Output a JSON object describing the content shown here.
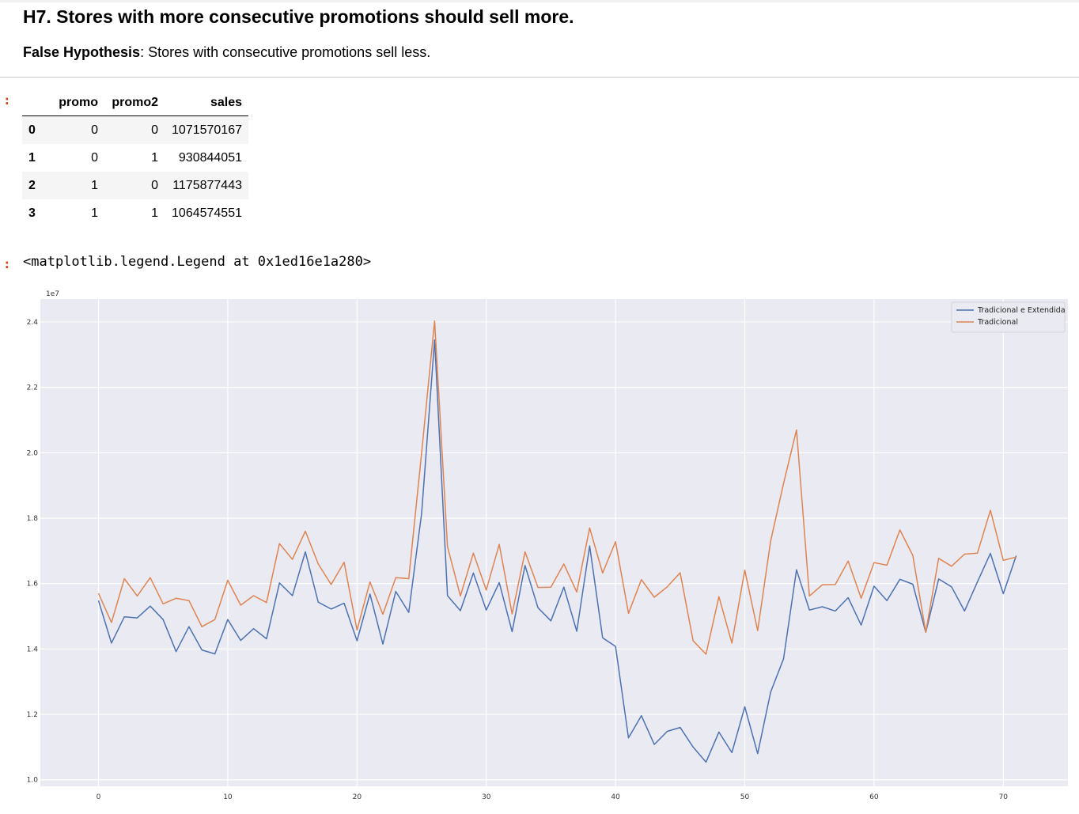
{
  "header": {
    "title": "H7. Stores with more consecutive promotions should sell more.",
    "hypothesis_label": "False Hypothesis",
    "hypothesis_text": ": Stores with consecutive promotions sell less."
  },
  "cells": {
    "prompt_symbol": ":",
    "output_text": "<matplotlib.legend.Legend at 0x1ed16e1a280>"
  },
  "table": {
    "columns": [
      "promo",
      "promo2",
      "sales"
    ],
    "rows": [
      {
        "index": "0",
        "promo": "0",
        "promo2": "0",
        "sales": "1071570167"
      },
      {
        "index": "1",
        "promo": "0",
        "promo2": "1",
        "sales": "930844051"
      },
      {
        "index": "2",
        "promo": "1",
        "promo2": "0",
        "sales": "1175877443"
      },
      {
        "index": "3",
        "promo": "1",
        "promo2": "1",
        "sales": "1064574551"
      }
    ]
  },
  "chart_data": {
    "type": "line",
    "title": "",
    "xlabel": "",
    "ylabel": "",
    "y_offset_label": "1e7",
    "xlim": [
      -4.5,
      75
    ],
    "ylim": [
      0.98,
      2.47
    ],
    "xticks": [
      0,
      10,
      20,
      30,
      40,
      50,
      60,
      70
    ],
    "yticks": [
      1.0,
      1.2,
      1.4,
      1.6,
      1.8,
      2.0,
      2.2,
      2.4
    ],
    "ytick_labels": [
      "1.0",
      "1.2",
      "1.4",
      "1.6",
      "1.8",
      "2.0",
      "2.2",
      "2.4"
    ],
    "grid": true,
    "legend_position": "top-right",
    "background": "#eaeaf2",
    "series": [
      {
        "name": "Tradicional e Extendida",
        "color": "#4c72b0",
        "values": [
          1.548,
          1.418,
          1.498,
          1.495,
          1.531,
          1.49,
          1.392,
          1.468,
          1.397,
          1.385,
          1.49,
          1.426,
          1.462,
          1.431,
          1.602,
          1.563,
          1.697,
          1.543,
          1.522,
          1.54,
          1.425,
          1.568,
          1.415,
          1.576,
          1.512,
          1.815,
          2.345,
          1.563,
          1.517,
          1.632,
          1.519,
          1.603,
          1.453,
          1.655,
          1.526,
          1.486,
          1.589,
          1.454,
          1.715,
          1.434,
          1.408,
          1.128,
          1.196,
          1.108,
          1.148,
          1.16,
          1.1,
          1.054,
          1.146,
          1.083,
          1.223,
          1.08,
          1.268,
          1.37,
          1.642,
          1.519,
          1.529,
          1.516,
          1.557,
          1.473,
          1.592,
          1.548,
          1.613,
          1.598,
          1.451,
          1.614,
          1.59,
          1.516,
          1.605,
          1.692,
          1.569,
          1.685
        ]
      },
      {
        "name": "Tradicional",
        "color": "#dd8452",
        "values": [
          1.57,
          1.481,
          1.615,
          1.562,
          1.618,
          1.538,
          1.555,
          1.548,
          1.468,
          1.49,
          1.61,
          1.534,
          1.563,
          1.542,
          1.722,
          1.674,
          1.76,
          1.66,
          1.597,
          1.665,
          1.458,
          1.605,
          1.506,
          1.618,
          1.615,
          2.0,
          2.403,
          1.713,
          1.562,
          1.693,
          1.58,
          1.72,
          1.507,
          1.697,
          1.588,
          1.589,
          1.66,
          1.574,
          1.77,
          1.632,
          1.728,
          1.509,
          1.612,
          1.558,
          1.59,
          1.633,
          1.425,
          1.384,
          1.56,
          1.418,
          1.641,
          1.456,
          1.73,
          1.906,
          2.07,
          1.562,
          1.596,
          1.597,
          1.669,
          1.555,
          1.664,
          1.656,
          1.764,
          1.686,
          1.451,
          1.677,
          1.653,
          1.69,
          1.693,
          1.824,
          1.671,
          1.681
        ]
      }
    ]
  }
}
